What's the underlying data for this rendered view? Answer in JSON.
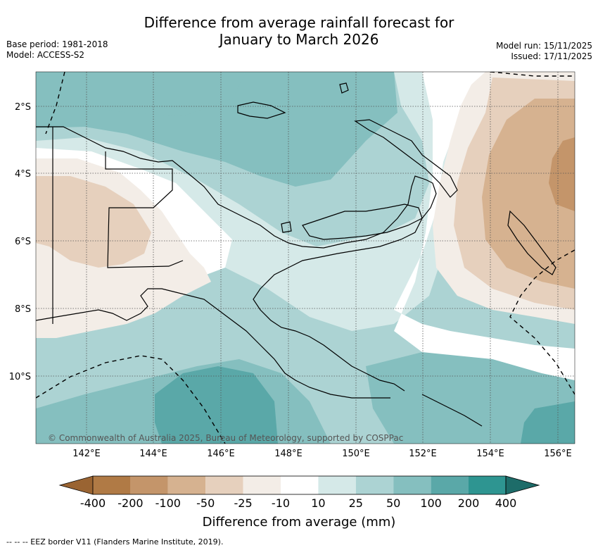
{
  "header": {
    "title_line1": "Difference from average rainfall forecast for",
    "title_line2": "January to March 2026",
    "base_period": "Base period: 1981-2018",
    "model": "Model: ACCESS-S2",
    "model_run": "Model run: 15/11/2025",
    "issued": "Issued: 17/11/2025"
  },
  "map": {
    "lon_labels": [
      "142°E",
      "144°E",
      "146°E",
      "148°E",
      "150°E",
      "152°E",
      "154°E",
      "156°E"
    ],
    "lat_labels": [
      "2°S",
      "4°S",
      "6°S",
      "8°S",
      "10°S"
    ],
    "copyright": "© Commonwealth of Australia 2025, Bureau of Meteorology, supported by COSPPac"
  },
  "colorbar": {
    "labels": [
      "-400",
      "-200",
      "-100",
      "-50",
      "-25",
      "-10",
      "10",
      "25",
      "50",
      "100",
      "200",
      "400"
    ],
    "colors": [
      "#9a6432",
      "#b07a45",
      "#c4956a",
      "#d6b290",
      "#e6d0bd",
      "#f3ede7",
      "#ffffff",
      "#d5e9e8",
      "#acd3d3",
      "#85bfbf",
      "#5aa8a8",
      "#2e9591",
      "#1d6c69"
    ],
    "title": "Difference from average (mm)"
  },
  "footer": {
    "legend": "-- -- -- EEZ border V11 (Flanders Marine Institute, 2019)."
  }
}
